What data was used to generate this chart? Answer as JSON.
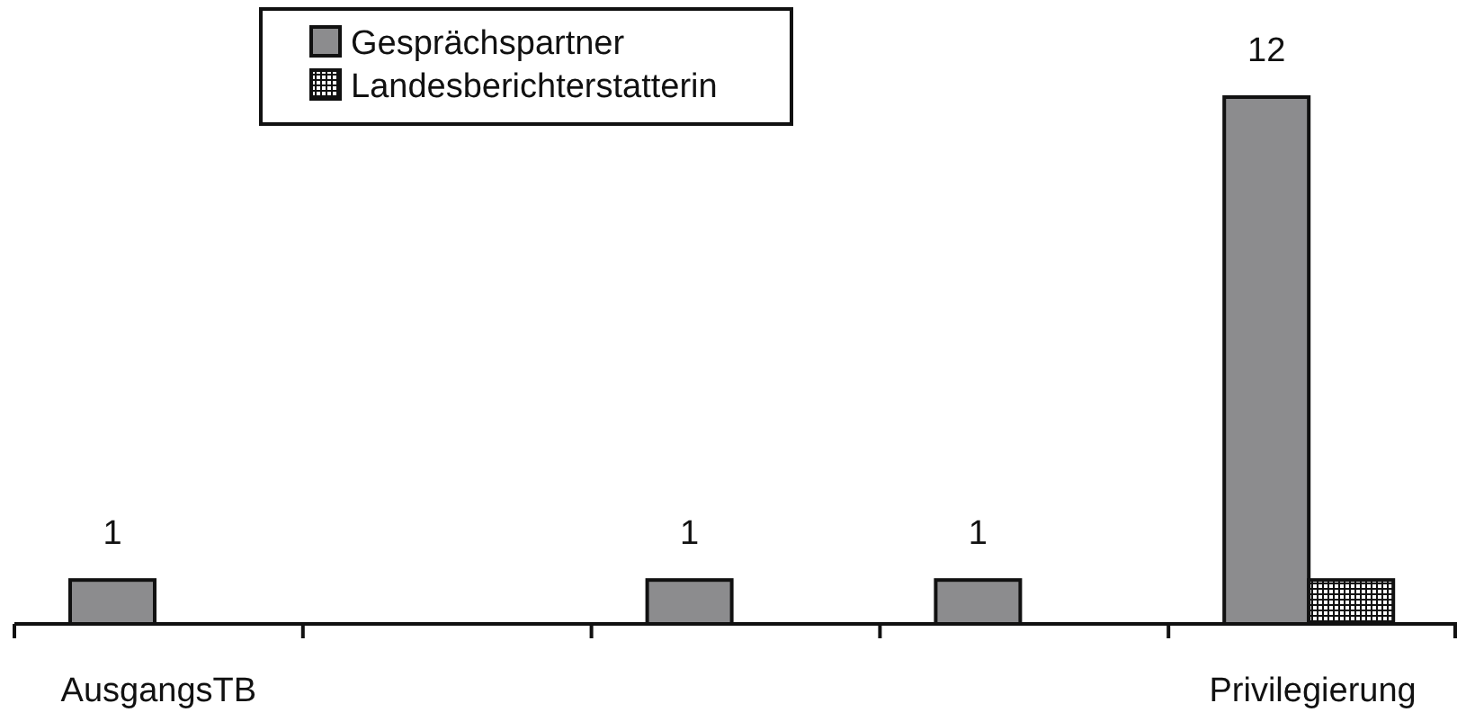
{
  "chart_data": {
    "type": "bar",
    "categories": [
      "AusgangsTB",
      null,
      null,
      null,
      "Privilegierung"
    ],
    "series": [
      {
        "name": "Gesprächspartner",
        "color": "#8c8c8e",
        "values": [
          1,
          null,
          1,
          1,
          12
        ],
        "value_labels": [
          "1",
          null,
          "1",
          "1",
          "12"
        ]
      },
      {
        "name": "Landesberichterstatterin",
        "color": "#111111",
        "values": [
          null,
          null,
          null,
          null,
          1
        ]
      }
    ],
    "ylim": [
      0,
      12
    ],
    "tick_labels": "x",
    "legend": "top"
  }
}
